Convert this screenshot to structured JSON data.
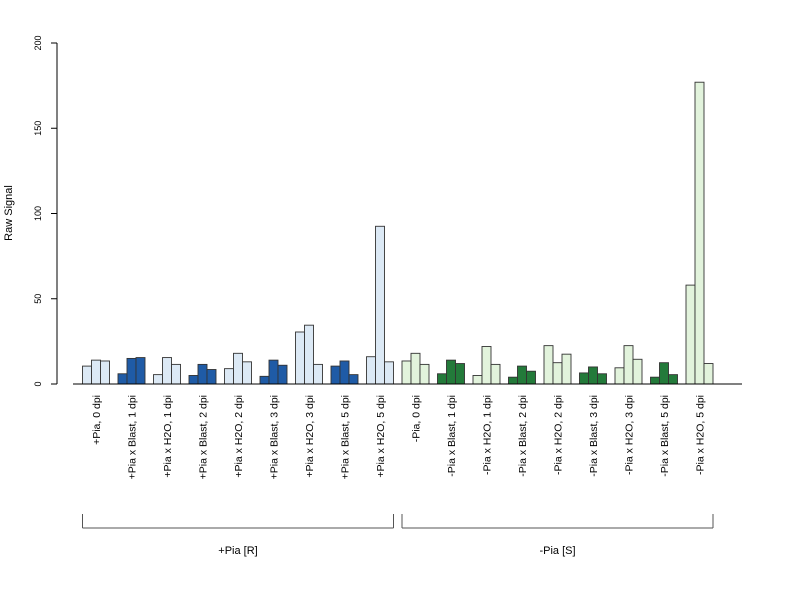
{
  "chart_data": {
    "type": "bar",
    "ylabel": "Raw Signal",
    "xlabel": "",
    "title": "",
    "ylim": [
      0,
      200
    ],
    "yticks": [
      0,
      50,
      100,
      150,
      200
    ],
    "grid": false,
    "legend": "none",
    "bars_per_category": 3,
    "categories": [
      "+Pia, 0 dpi",
      "+Pia x Blast, 1 dpi",
      "+Pia x H2O, 1 dpi",
      "+Pia x Blast, 2 dpi",
      "+Pia x H2O, 2 dpi",
      "+Pia x Blast, 3 dpi",
      "+Pia x H2O, 3 dpi",
      "+Pia x Blast, 5 dpi",
      "+Pia x H2O, 5 dpi",
      "-Pia, 0 dpi",
      "-Pia x Blast, 1 dpi",
      "-Pia x H2O, 1 dpi",
      "-Pia x Blast, 2 dpi",
      "-Pia x H2O, 2 dpi",
      "-Pia x Blast, 3 dpi",
      "-Pia x H2O, 3 dpi",
      "-Pia x Blast, 5 dpi",
      "-Pia x H2O, 5 dpi"
    ],
    "replicate_values": [
      [
        10.5,
        14,
        13.5
      ],
      [
        6,
        15,
        15.5
      ],
      [
        5.5,
        15.5,
        11.5
      ],
      [
        5,
        11.5,
        8.5
      ],
      [
        9,
        18,
        13
      ],
      [
        4.5,
        14,
        11
      ],
      [
        30.5,
        34.5,
        11.5
      ],
      [
        10.5,
        13.5,
        5.5
      ],
      [
        16,
        92.5,
        13
      ],
      [
        13.5,
        18,
        11.5
      ],
      [
        6,
        14,
        12
      ],
      [
        5,
        22,
        11.5
      ],
      [
        4,
        10.5,
        7.5
      ],
      [
        22.5,
        12.5,
        17.5
      ],
      [
        6.5,
        10,
        6
      ],
      [
        9.5,
        22.5,
        14.5
      ],
      [
        4,
        12.5,
        5.5
      ],
      [
        58,
        177,
        12
      ]
    ],
    "groups": [
      {
        "label": "+Pia [R]",
        "start": 0,
        "end": 8
      },
      {
        "label": "-Pia [S]",
        "start": 9,
        "end": 17
      }
    ],
    "colors": {
      "pia_plus_light": "#dce9f5",
      "pia_plus_dark": "#1f5ba6",
      "pia_minus_light": "#e2f3dc",
      "pia_minus_dark": "#237a3a",
      "bar_border": "#333333",
      "axis": "#000000",
      "bracket": "#555555"
    },
    "category_colors": [
      "pia_plus_light",
      "pia_plus_dark",
      "pia_plus_light",
      "pia_plus_dark",
      "pia_plus_light",
      "pia_plus_dark",
      "pia_plus_light",
      "pia_plus_dark",
      "pia_plus_light",
      "pia_minus_light",
      "pia_minus_dark",
      "pia_minus_light",
      "pia_minus_dark",
      "pia_minus_light",
      "pia_minus_dark",
      "pia_minus_light",
      "pia_minus_dark",
      "pia_minus_light"
    ]
  }
}
